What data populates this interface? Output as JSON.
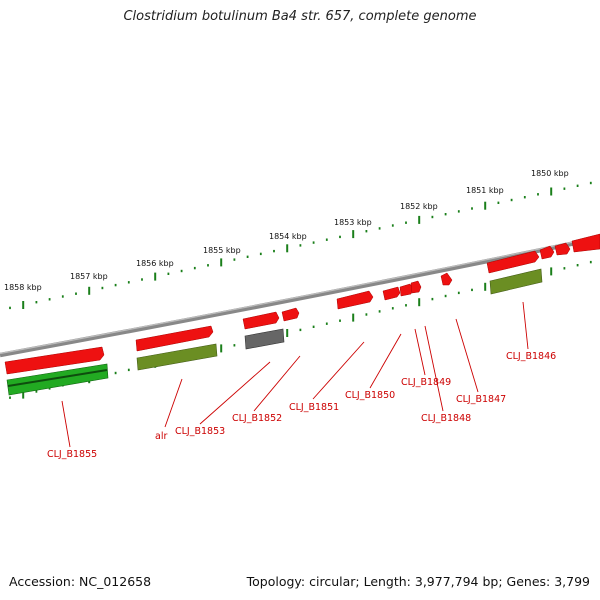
{
  "title": "Clostridium botulinum Ba4 str. 657, complete genome",
  "footer": {
    "accession": "Accession: NC_012658",
    "topology": "Topology: circular; Length: 3,977,794 bp; Genes: 3,799"
  },
  "scale_labels": [
    "1858 kbp",
    "1857 kbp",
    "1856 kbp",
    "1855 kbp",
    "1854 kbp",
    "1853 kbp",
    "1852 kbp",
    "1851 kbp",
    "1850 kbp"
  ],
  "gene_labels": [
    "CLJ_B1855",
    "alr",
    "CLJ_B1853",
    "CLJ_B1852",
    "CLJ_B1851",
    "CLJ_B1850",
    "CLJ_B1849",
    "CLJ_B1848",
    "CLJ_B1847",
    "CLJ_B1846"
  ],
  "colors": {
    "gene_red": "#ee1111",
    "cds_green": "#22aa22",
    "cds_olive": "#6b8e23",
    "cds_gray": "#666666",
    "backbone": "#888888",
    "tick_green": "#1a7f1a",
    "label_red": "#cc0000"
  }
}
